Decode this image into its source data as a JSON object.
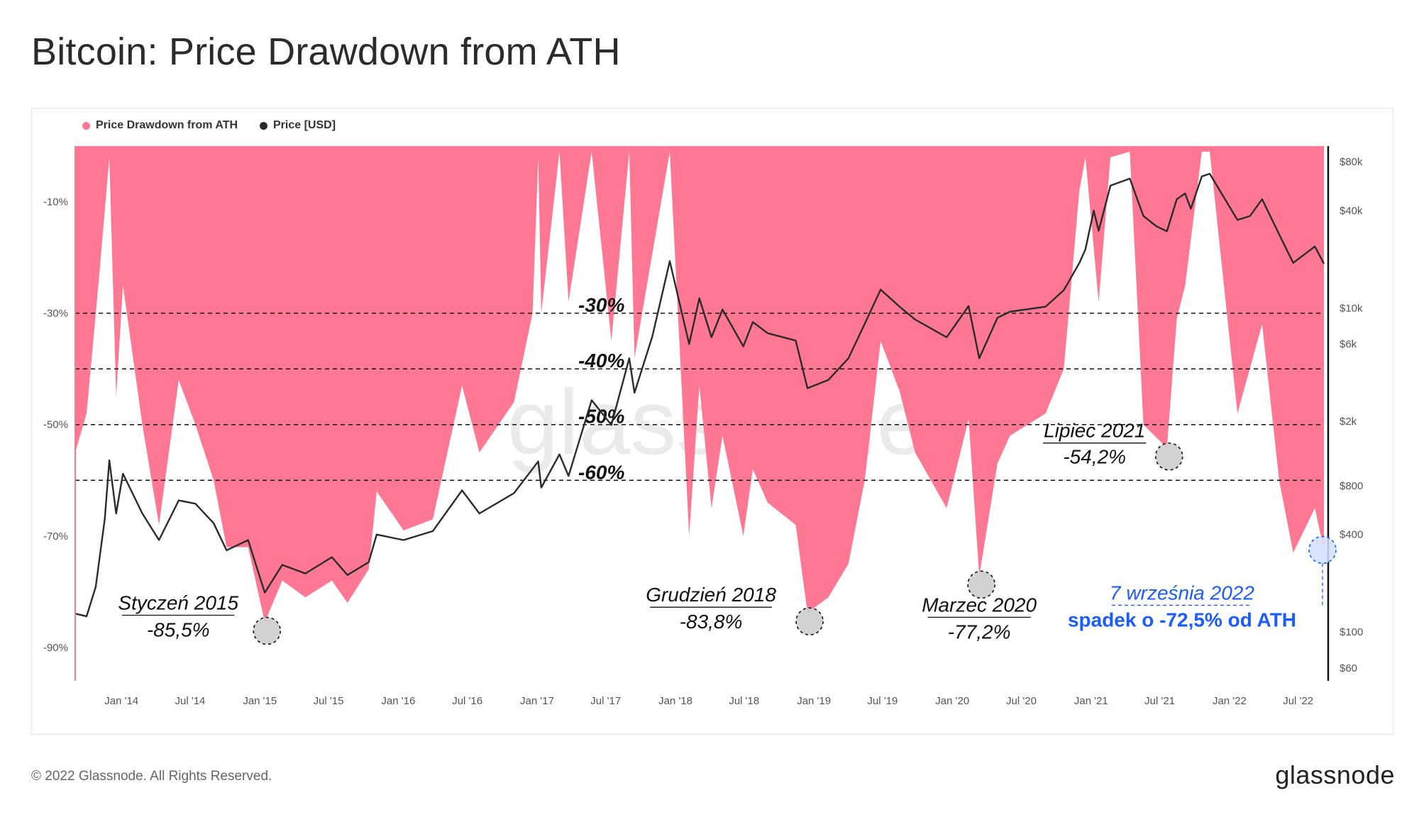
{
  "title": "Bitcoin: Price Drawdown from ATH",
  "legend": [
    {
      "label": "Price Drawdown from ATH",
      "color": "#ff7893"
    },
    {
      "label": "Price [USD]",
      "color": "#2b2b2b"
    }
  ],
  "watermark": "glassnode",
  "footer": {
    "copyright": "© 2022 Glassnode. All Rights Reserved.",
    "brand": "glassnode"
  },
  "chart_data": {
    "type": "area",
    "title": "Bitcoin: Price Drawdown from ATH",
    "x_ticks": [
      "Jan '14",
      "Jul '14",
      "Jan '15",
      "Jul '15",
      "Jan '16",
      "Jul '16",
      "Jan '17",
      "Jul '17",
      "Jan '18",
      "Jul '18",
      "Jan '19",
      "Jul '19",
      "Jan '20",
      "Jul '20",
      "Jan '21",
      "Jul '21",
      "Jan '22",
      "Jul '22"
    ],
    "x_range": [
      "2013-09-01",
      "2022-09-07"
    ],
    "y_left": {
      "ticks": [
        "-10%",
        "-30%",
        "-50%",
        "-70%",
        "-90%"
      ],
      "values": [
        -10,
        -30,
        -50,
        -70,
        -90
      ],
      "range": [
        -96,
        0
      ]
    },
    "y_right": {
      "scale": "log",
      "ticks": [
        "$80k",
        "$40k",
        "$10k",
        "$6k",
        "$2k",
        "$800",
        "$400",
        "$100",
        "$60"
      ],
      "values": [
        80000,
        40000,
        10000,
        6000,
        2000,
        800,
        400,
        100,
        60
      ],
      "range": [
        50,
        100000
      ]
    },
    "grid": false,
    "legend_position": "top-left",
    "levels": [
      {
        "value": -30,
        "label": "-30%"
      },
      {
        "value": -40,
        "label": "-40%"
      },
      {
        "value": -50,
        "label": "-50%"
      },
      {
        "value": -60,
        "label": "-60%"
      }
    ],
    "series": [
      {
        "name": "Price Drawdown from ATH",
        "axis": "left",
        "color": "#ff7893",
        "points": [
          [
            "2013-09-01",
            -55
          ],
          [
            "2013-10-01",
            -48
          ],
          [
            "2013-11-01",
            -25
          ],
          [
            "2013-11-30",
            -2
          ],
          [
            "2013-12-18",
            -45
          ],
          [
            "2014-01-05",
            -25
          ],
          [
            "2014-02-25",
            -50
          ],
          [
            "2014-04-10",
            -68
          ],
          [
            "2014-06-01",
            -42
          ],
          [
            "2014-07-15",
            -50
          ],
          [
            "2014-09-01",
            -60
          ],
          [
            "2014-10-05",
            -72
          ],
          [
            "2014-12-01",
            -72
          ],
          [
            "2015-01-14",
            -85.5
          ],
          [
            "2015-03-01",
            -78
          ],
          [
            "2015-05-01",
            -81
          ],
          [
            "2015-07-10",
            -78
          ],
          [
            "2015-08-20",
            -82
          ],
          [
            "2015-10-15",
            -76
          ],
          [
            "2015-11-05",
            -62
          ],
          [
            "2016-01-15",
            -69
          ],
          [
            "2016-04-01",
            -67
          ],
          [
            "2016-06-17",
            -43
          ],
          [
            "2016-08-02",
            -55
          ],
          [
            "2016-11-01",
            -46
          ],
          [
            "2016-12-20",
            -30
          ],
          [
            "2017-01-04",
            -2
          ],
          [
            "2017-01-12",
            -30
          ],
          [
            "2017-03-01",
            -1
          ],
          [
            "2017-03-25",
            -28
          ],
          [
            "2017-05-25",
            -1
          ],
          [
            "2017-07-16",
            -35
          ],
          [
            "2017-09-01",
            -1
          ],
          [
            "2017-09-15",
            -38
          ],
          [
            "2017-12-17",
            -1
          ],
          [
            "2018-02-06",
            -70
          ],
          [
            "2018-03-05",
            -43
          ],
          [
            "2018-04-06",
            -65
          ],
          [
            "2018-05-05",
            -52
          ],
          [
            "2018-06-29",
            -70
          ],
          [
            "2018-07-24",
            -58
          ],
          [
            "2018-09-01",
            -64
          ],
          [
            "2018-11-14",
            -68
          ],
          [
            "2018-12-15",
            -83.8
          ],
          [
            "2019-02-08",
            -81
          ],
          [
            "2019-04-02",
            -75
          ],
          [
            "2019-05-15",
            -60
          ],
          [
            "2019-06-26",
            -35
          ],
          [
            "2019-08-15",
            -44
          ],
          [
            "2019-09-25",
            -55
          ],
          [
            "2019-12-17",
            -65
          ],
          [
            "2020-02-13",
            -49
          ],
          [
            "2020-03-12",
            -77.2
          ],
          [
            "2020-04-29",
            -57
          ],
          [
            "2020-06-01",
            -52
          ],
          [
            "2020-09-03",
            -48
          ],
          [
            "2020-10-21",
            -40
          ],
          [
            "2020-12-01",
            -8
          ],
          [
            "2020-12-17",
            -2
          ],
          [
            "2021-01-21",
            -28
          ],
          [
            "2021-02-21",
            -2
          ],
          [
            "2021-04-13",
            -1
          ],
          [
            "2021-05-19",
            -50
          ],
          [
            "2021-07-20",
            -54.2
          ],
          [
            "2021-08-15",
            -31
          ],
          [
            "2021-09-06",
            -25
          ],
          [
            "2021-10-20",
            -1
          ],
          [
            "2021-11-10",
            -1
          ],
          [
            "2022-01-22",
            -48
          ],
          [
            "2022-03-28",
            -32
          ],
          [
            "2022-05-12",
            -60
          ],
          [
            "2022-06-18",
            -73
          ],
          [
            "2022-08-14",
            -65
          ],
          [
            "2022-09-07",
            -72.5
          ]
        ]
      },
      {
        "name": "Price [USD]",
        "axis": "right",
        "color": "#2b2b2b",
        "points": [
          [
            "2013-09-01",
            130
          ],
          [
            "2013-10-01",
            125
          ],
          [
            "2013-10-25",
            190
          ],
          [
            "2013-11-18",
            500
          ],
          [
            "2013-11-30",
            1150
          ],
          [
            "2013-12-18",
            540
          ],
          [
            "2014-01-05",
            950
          ],
          [
            "2014-02-25",
            540
          ],
          [
            "2014-04-10",
            370
          ],
          [
            "2014-06-01",
            650
          ],
          [
            "2014-07-15",
            620
          ],
          [
            "2014-09-01",
            470
          ],
          [
            "2014-10-05",
            320
          ],
          [
            "2014-12-01",
            370
          ],
          [
            "2015-01-14",
            175
          ],
          [
            "2015-03-01",
            260
          ],
          [
            "2015-05-01",
            230
          ],
          [
            "2015-07-10",
            290
          ],
          [
            "2015-08-20",
            225
          ],
          [
            "2015-10-15",
            270
          ],
          [
            "2015-11-05",
            400
          ],
          [
            "2016-01-15",
            370
          ],
          [
            "2016-04-01",
            420
          ],
          [
            "2016-06-17",
            750
          ],
          [
            "2016-08-02",
            540
          ],
          [
            "2016-11-01",
            720
          ],
          [
            "2017-01-04",
            1130
          ],
          [
            "2017-01-12",
            780
          ],
          [
            "2017-03-01",
            1250
          ],
          [
            "2017-03-25",
            920
          ],
          [
            "2017-05-25",
            2700
          ],
          [
            "2017-07-16",
            1900
          ],
          [
            "2017-09-01",
            4900
          ],
          [
            "2017-09-15",
            3000
          ],
          [
            "2017-11-01",
            6700
          ],
          [
            "2017-12-17",
            19500
          ],
          [
            "2018-02-06",
            6000
          ],
          [
            "2018-03-05",
            11500
          ],
          [
            "2018-04-06",
            6600
          ],
          [
            "2018-05-05",
            9800
          ],
          [
            "2018-06-29",
            5800
          ],
          [
            "2018-07-24",
            8200
          ],
          [
            "2018-09-01",
            7000
          ],
          [
            "2018-11-14",
            6300
          ],
          [
            "2018-12-15",
            3200
          ],
          [
            "2019-02-08",
            3600
          ],
          [
            "2019-04-02",
            4900
          ],
          [
            "2019-05-15",
            8000
          ],
          [
            "2019-06-26",
            13000
          ],
          [
            "2019-08-15",
            10200
          ],
          [
            "2019-09-25",
            8500
          ],
          [
            "2019-12-17",
            6600
          ],
          [
            "2020-02-13",
            10300
          ],
          [
            "2020-03-12",
            4900
          ],
          [
            "2020-04-29",
            8700
          ],
          [
            "2020-06-01",
            9500
          ],
          [
            "2020-09-03",
            10200
          ],
          [
            "2020-10-21",
            12900
          ],
          [
            "2020-12-01",
            19000
          ],
          [
            "2020-12-17",
            23000
          ],
          [
            "2021-01-08",
            40000
          ],
          [
            "2021-01-21",
            30000
          ],
          [
            "2021-02-21",
            57000
          ],
          [
            "2021-04-13",
            63000
          ],
          [
            "2021-05-19",
            37000
          ],
          [
            "2021-06-22",
            32000
          ],
          [
            "2021-07-20",
            29800
          ],
          [
            "2021-08-15",
            47000
          ],
          [
            "2021-09-06",
            51000
          ],
          [
            "2021-09-21",
            41000
          ],
          [
            "2021-10-20",
            65000
          ],
          [
            "2021-11-10",
            67500
          ],
          [
            "2022-01-22",
            35000
          ],
          [
            "2022-02-24",
            37000
          ],
          [
            "2022-03-28",
            47000
          ],
          [
            "2022-05-12",
            28500
          ],
          [
            "2022-06-18",
            19000
          ],
          [
            "2022-08-14",
            24000
          ],
          [
            "2022-09-07",
            18800
          ]
        ]
      }
    ],
    "annotations": [
      {
        "date": "2015-01-14",
        "line1": "Styczeń 2015",
        "line2": "-85,5%"
      },
      {
        "date": "2018-12-15",
        "line1": "Grudzień 2018",
        "line2": "-83,8%"
      },
      {
        "date": "2020-03-12",
        "line1": "Marzec 2020",
        "line2": "-77,2%"
      },
      {
        "date": "2021-07-20",
        "line1": "Lipiec 2021",
        "line2": "-54,2%"
      },
      {
        "date": "2022-09-07",
        "line1": "7 września 2022",
        "line2": "spadek o -72,5% od ATH"
      }
    ]
  }
}
